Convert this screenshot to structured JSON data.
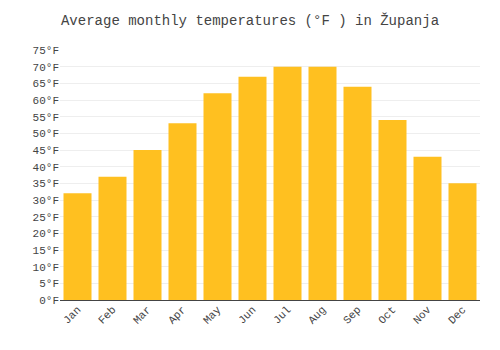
{
  "chart_data": {
    "type": "bar",
    "title": "Average monthly temperatures (°F ) in Županja",
    "categories": [
      "Jan",
      "Feb",
      "Mar",
      "Apr",
      "May",
      "Jun",
      "Jul",
      "Aug",
      "Sep",
      "Oct",
      "Nov",
      "Dec"
    ],
    "values": [
      32,
      37,
      45,
      53,
      62,
      67,
      70,
      70,
      64,
      54,
      43,
      35
    ],
    "color": "#FFC020",
    "ylim": [
      0,
      75
    ],
    "yticks": [
      {
        "value": 0,
        "label": "0°F"
      },
      {
        "value": 5,
        "label": "5°F"
      },
      {
        "value": 10,
        "label": "10°F"
      },
      {
        "value": 15,
        "label": "15°F"
      },
      {
        "value": 20,
        "label": "20°F"
      },
      {
        "value": 25,
        "label": "25°F"
      },
      {
        "value": 30,
        "label": "30°F"
      },
      {
        "value": 35,
        "label": "35°F"
      },
      {
        "value": 40,
        "label": "40°F"
      },
      {
        "value": 45,
        "label": "45°F"
      },
      {
        "value": 50,
        "label": "50°F"
      },
      {
        "value": 55,
        "label": "55°F"
      },
      {
        "value": 60,
        "label": "60°F"
      },
      {
        "value": 65,
        "label": "65°F"
      },
      {
        "value": 70,
        "label": "70°F"
      },
      {
        "value": 75,
        "label": "75°F"
      }
    ],
    "grid": true
  }
}
